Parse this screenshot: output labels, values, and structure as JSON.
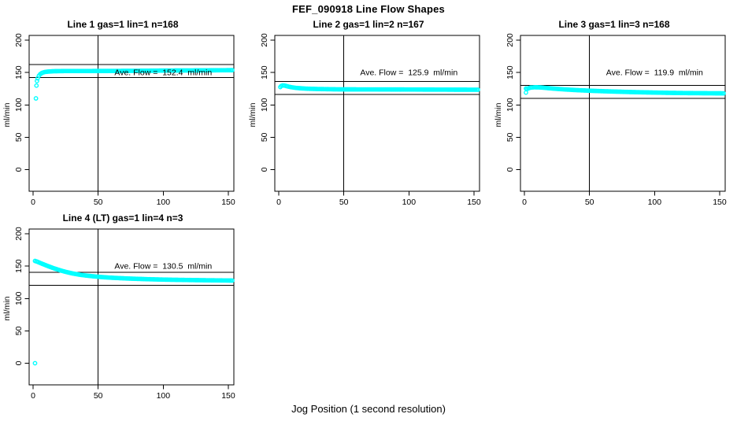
{
  "page": {
    "title": "FEF_090918  Line Flow Shapes",
    "outer_xlabel": "Jog Position (1 second resolution)"
  },
  "colors": {
    "points": "#00FFFF",
    "axes": "#000000",
    "background": "#FFFFFF"
  },
  "axes": {
    "xticks": [
      0,
      50,
      100,
      150
    ],
    "yticks": [
      0,
      50,
      100,
      150,
      200
    ],
    "ylabel": "ml/min",
    "xlim": [
      -4,
      155
    ],
    "ylim": [
      -33,
      207
    ],
    "vline_x": 50,
    "grid": false
  },
  "chart_data": [
    {
      "type": "scatter",
      "title": "Line 1 gas=1 lin=1 n=168",
      "line": 1,
      "gas": 1,
      "lin": 1,
      "n": 168,
      "ave_flow": 152.4,
      "ave_label": "Ave. Flow =  152.4  ml/min",
      "ref_lines": [
        162.4,
        142.4
      ],
      "outliers": [
        [
          2.2,
          110
        ],
        [
          2.6,
          129.8
        ],
        [
          3.0,
          137
        ]
      ],
      "band": [
        [
          3.5,
          141
        ],
        [
          4.5,
          145
        ],
        [
          5.5,
          147.5
        ],
        [
          7,
          149.5
        ],
        [
          9,
          150.8
        ],
        [
          12,
          151.5
        ],
        [
          16,
          152
        ],
        [
          25,
          152.3
        ],
        [
          40,
          152.3
        ],
        [
          60,
          152.4
        ],
        [
          80,
          152.6
        ],
        [
          100,
          153
        ],
        [
          120,
          153.2
        ],
        [
          153,
          153.6
        ]
      ]
    },
    {
      "type": "scatter",
      "title": "Line 2 gas=1 lin=2 n=167",
      "line": 2,
      "gas": 1,
      "lin": 2,
      "n": 167,
      "ave_flow": 125.9,
      "ave_label": "Ave. Flow =  125.9  ml/min",
      "ref_lines": [
        135.9,
        115.9
      ],
      "outliers": [],
      "band": [
        [
          1.2,
          127.5
        ],
        [
          2,
          129.3
        ],
        [
          3,
          130
        ],
        [
          4.5,
          129.8
        ],
        [
          6,
          129
        ],
        [
          8,
          128
        ],
        [
          10,
          127.2
        ],
        [
          13,
          126.3
        ],
        [
          17,
          125.6
        ],
        [
          22,
          125
        ],
        [
          30,
          124.5
        ],
        [
          45,
          124
        ],
        [
          60,
          123.9
        ],
        [
          90,
          123.8
        ],
        [
          120,
          123.6
        ],
        [
          153,
          123.4
        ]
      ]
    },
    {
      "type": "scatter",
      "title": "Line 3 gas=1 lin=3 n=168",
      "line": 3,
      "gas": 1,
      "lin": 3,
      "n": 168,
      "ave_flow": 119.9,
      "ave_label": "Ave. Flow =  119.9  ml/min",
      "ref_lines": [
        129.9,
        109.9
      ],
      "outliers": [
        [
          1.2,
          125.3
        ],
        [
          1.2,
          119
        ]
      ],
      "band": [
        [
          2,
          124.5
        ],
        [
          3.5,
          126
        ],
        [
          5,
          126.8
        ],
        [
          8,
          127.2
        ],
        [
          12,
          127
        ],
        [
          16,
          126.3
        ],
        [
          22,
          125.2
        ],
        [
          30,
          124
        ],
        [
          40,
          122.8
        ],
        [
          52,
          121.7
        ],
        [
          65,
          120.8
        ],
        [
          80,
          119.9
        ],
        [
          95,
          119.2
        ],
        [
          110,
          118.6
        ],
        [
          125,
          118.2
        ],
        [
          153,
          117.8
        ]
      ]
    },
    {
      "type": "scatter",
      "title": "Line 4 (LT) gas=1 lin=4 n=3",
      "line": 4,
      "lt": true,
      "gas": 1,
      "lin": 4,
      "n": 3,
      "ave_flow": 130.5,
      "ave_label": "Ave. Flow =  130.5  ml/min",
      "ref_lines": [
        140.5,
        120.5
      ],
      "outliers": [
        [
          1.5,
          0
        ]
      ],
      "band": [
        [
          1.5,
          158
        ],
        [
          3,
          157
        ],
        [
          5,
          155.3
        ],
        [
          7,
          153.6
        ],
        [
          9,
          152
        ],
        [
          11,
          150.4
        ],
        [
          13,
          148.9
        ],
        [
          15,
          147.4
        ],
        [
          17,
          146
        ],
        [
          19,
          144.7
        ],
        [
          21,
          143.4
        ],
        [
          24,
          141.7
        ],
        [
          27,
          140.2
        ],
        [
          30,
          138.8
        ],
        [
          33,
          137.7
        ],
        [
          36,
          136.7
        ],
        [
          40,
          135.6
        ],
        [
          44,
          134.7
        ],
        [
          48,
          133.9
        ],
        [
          52,
          133.2
        ],
        [
          57,
          132.5
        ],
        [
          62,
          131.9
        ],
        [
          68,
          131.3
        ],
        [
          75,
          130.7
        ],
        [
          82,
          130.2
        ],
        [
          90,
          129.7
        ],
        [
          100,
          129.2
        ],
        [
          110,
          128.8
        ],
        [
          120,
          128.5
        ],
        [
          135,
          128.1
        ],
        [
          153,
          127.7
        ]
      ]
    }
  ],
  "annotation": {
    "x_data": 100,
    "y_data": 150
  }
}
